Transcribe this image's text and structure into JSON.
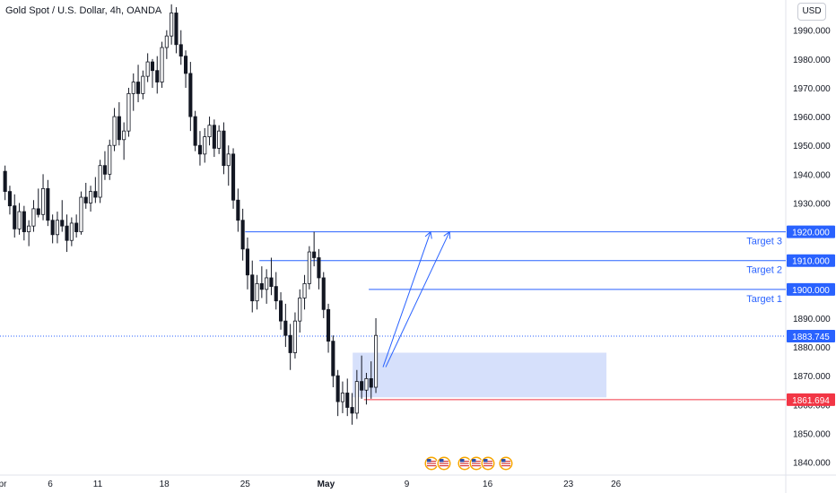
{
  "header": {
    "title": "Gold Spot / U.S. Dollar, 4h, OANDA",
    "currency_label": "USD"
  },
  "chart_data": {
    "type": "candlestick",
    "y_axis": {
      "ylim": [
        1835.5,
        2000.5
      ],
      "ticks": [
        "1840.000",
        "1850.000",
        "1860.000",
        "1870.000",
        "1880.000",
        "1890.000",
        "1900.000",
        "1910.000",
        "1920.000",
        "1930.000",
        "1940.000",
        "1950.000",
        "1960.000",
        "1970.000",
        "1980.000",
        "1990.000"
      ],
      "position": "right"
    },
    "x_axis": {
      "ticks": [
        {
          "label": "pr",
          "bar": 0
        },
        {
          "label": "6",
          "bar": 10
        },
        {
          "label": "11",
          "bar": 20
        },
        {
          "label": "18",
          "bar": 34
        },
        {
          "label": "25",
          "bar": 51
        },
        {
          "label": "May",
          "bar": 68
        },
        {
          "label": "9",
          "bar": 85
        },
        {
          "label": "16",
          "bar": 102
        },
        {
          "label": "23",
          "bar": 119
        },
        {
          "label": "26",
          "bar": 129
        }
      ],
      "bars_total": 140
    },
    "colors": {
      "up": "#131722",
      "down": "#131722",
      "up_fill": "#ffffff",
      "down_fill": "#131722",
      "level_line": "#2962ff",
      "stop_line": "#f23645",
      "zone_fill": "#d1ddfb"
    },
    "candles": [
      [
        1941,
        1943,
        1931,
        1934
      ],
      [
        1934,
        1936,
        1926,
        1929
      ],
      [
        1929,
        1933,
        1918,
        1921
      ],
      [
        1921,
        1930,
        1919,
        1927
      ],
      [
        1927,
        1929,
        1917,
        1920
      ],
      [
        1920,
        1924,
        1915,
        1922
      ],
      [
        1922,
        1931,
        1920,
        1928
      ],
      [
        1928,
        1935,
        1925,
        1926
      ],
      [
        1926,
        1940,
        1924,
        1935
      ],
      [
        1935,
        1938,
        1922,
        1924
      ],
      [
        1924,
        1926,
        1916,
        1919
      ],
      [
        1919,
        1927,
        1916,
        1924
      ],
      [
        1924,
        1931,
        1920,
        1922
      ],
      [
        1922,
        1926,
        1913,
        1917
      ],
      [
        1917,
        1925,
        1915,
        1923
      ],
      [
        1923,
        1926,
        1918,
        1920
      ],
      [
        1920,
        1934,
        1919,
        1932
      ],
      [
        1932,
        1937,
        1928,
        1930
      ],
      [
        1930,
        1936,
        1927,
        1934
      ],
      [
        1934,
        1939,
        1930,
        1932
      ],
      [
        1932,
        1945,
        1930,
        1943
      ],
      [
        1943,
        1948,
        1938,
        1940
      ],
      [
        1940,
        1952,
        1938,
        1950
      ],
      [
        1950,
        1963,
        1948,
        1960
      ],
      [
        1960,
        1965,
        1950,
        1952
      ],
      [
        1952,
        1958,
        1945,
        1955
      ],
      [
        1955,
        1970,
        1953,
        1968
      ],
      [
        1968,
        1975,
        1962,
        1972
      ],
      [
        1972,
        1978,
        1965,
        1968
      ],
      [
        1968,
        1976,
        1966,
        1974
      ],
      [
        1974,
        1982,
        1972,
        1979
      ],
      [
        1979,
        1980,
        1970,
        1976
      ],
      [
        1976,
        1981,
        1968,
        1972
      ],
      [
        1972,
        1986,
        1970,
        1984
      ],
      [
        1984,
        1990,
        1980,
        1988
      ],
      [
        1988,
        1999,
        1985,
        1996
      ],
      [
        1996,
        1998,
        1982,
        1985
      ],
      [
        1985,
        1990,
        1978,
        1981
      ],
      [
        1981,
        1983,
        1970,
        1975
      ],
      [
        1975,
        1979,
        1955,
        1960
      ],
      [
        1960,
        1962,
        1948,
        1950
      ],
      [
        1950,
        1955,
        1943,
        1947
      ],
      [
        1947,
        1956,
        1944,
        1953
      ],
      [
        1953,
        1960,
        1950,
        1957
      ],
      [
        1957,
        1959,
        1946,
        1949
      ],
      [
        1949,
        1957,
        1947,
        1955
      ],
      [
        1955,
        1958,
        1940,
        1943
      ],
      [
        1943,
        1950,
        1936,
        1947
      ],
      [
        1947,
        1949,
        1928,
        1931
      ],
      [
        1931,
        1935,
        1920,
        1924
      ],
      [
        1924,
        1928,
        1910,
        1914
      ],
      [
        1914,
        1918,
        1900,
        1905
      ],
      [
        1905,
        1910,
        1892,
        1896
      ],
      [
        1896,
        1905,
        1893,
        1902
      ],
      [
        1902,
        1908,
        1897,
        1900
      ],
      [
        1900,
        1907,
        1895,
        1904
      ],
      [
        1904,
        1911,
        1898,
        1901
      ],
      [
        1901,
        1906,
        1893,
        1896
      ],
      [
        1896,
        1899,
        1886,
        1889
      ],
      [
        1889,
        1895,
        1880,
        1884
      ],
      [
        1884,
        1888,
        1872,
        1878
      ],
      [
        1878,
        1892,
        1876,
        1889
      ],
      [
        1889,
        1900,
        1885,
        1897
      ],
      [
        1897,
        1905,
        1893,
        1902
      ],
      [
        1902,
        1915,
        1900,
        1913
      ],
      [
        1913,
        1920,
        1908,
        1911
      ],
      [
        1911,
        1914,
        1900,
        1904
      ],
      [
        1904,
        1906,
        1890,
        1893
      ],
      [
        1893,
        1895,
        1878,
        1882
      ],
      [
        1882,
        1884,
        1866,
        1870
      ],
      [
        1870,
        1872,
        1856,
        1861
      ],
      [
        1861,
        1868,
        1857,
        1864
      ],
      [
        1864,
        1869,
        1856,
        1859
      ],
      [
        1859,
        1864,
        1853,
        1857
      ],
      [
        1857,
        1872,
        1855,
        1868
      ],
      [
        1868,
        1877,
        1862,
        1865
      ],
      [
        1865,
        1871,
        1860,
        1869
      ],
      [
        1869,
        1875,
        1862,
        1866
      ],
      [
        1866,
        1890,
        1864,
        1884
      ]
    ],
    "levels": [
      {
        "label": "Target 3",
        "value": 1920.0,
        "tag": "1920.000"
      },
      {
        "label": "Target 2",
        "value": 1910.0,
        "tag": "1910.000"
      },
      {
        "label": "Target 1",
        "value": 1900.0,
        "tag": "1900.000"
      }
    ],
    "current_price": {
      "value": 1883.745,
      "tag": "1883.745"
    },
    "stop_level": {
      "value": 1861.694,
      "tag": "1861.694"
    },
    "zone": {
      "low": 1862.5,
      "high": 1878.0
    },
    "arrows": [
      {
        "from": [
          1873,
          1920
        ],
        "label": "arrow-1"
      },
      {
        "from": [
          1873,
          1920
        ],
        "label": "arrow-2"
      }
    ],
    "event_flags": [
      "us-flag-icon",
      "us-flag-icon",
      "us-flag-icon",
      "us-flag-icon",
      "us-flag-icon",
      "us-flag-icon"
    ],
    "grid": false
  }
}
